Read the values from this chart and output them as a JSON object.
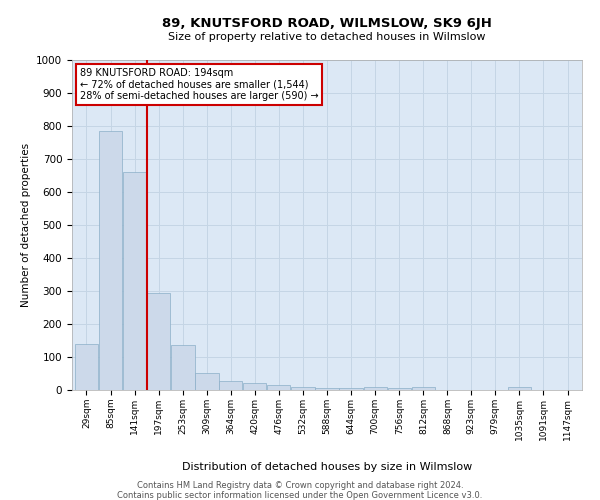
{
  "title": "89, KNUTSFORD ROAD, WILMSLOW, SK9 6JH",
  "subtitle": "Size of property relative to detached houses in Wilmslow",
  "xlabel": "Distribution of detached houses by size in Wilmslow",
  "ylabel": "Number of detached properties",
  "bar_color": "#ccd9ea",
  "bar_edge_color": "#8aaec8",
  "grid_color": "#c5d5e5",
  "background_color": "#dce8f5",
  "vline_color": "#cc0000",
  "categories": [
    29,
    85,
    141,
    197,
    253,
    309,
    364,
    420,
    476,
    532,
    588,
    644,
    700,
    756,
    812,
    868,
    923,
    979,
    1035,
    1091,
    1147
  ],
  "values": [
    140,
    785,
    660,
    295,
    135,
    52,
    28,
    20,
    15,
    10,
    7,
    5,
    10,
    5,
    10,
    0,
    0,
    0,
    10,
    0,
    0
  ],
  "ylim": [
    0,
    1000
  ],
  "yticks": [
    0,
    100,
    200,
    300,
    400,
    500,
    600,
    700,
    800,
    900,
    1000
  ],
  "annotation_box_text": "89 KNUTSFORD ROAD: 194sqm\n← 72% of detached houses are smaller (1,544)\n28% of semi-detached houses are larger (590) →",
  "annotation_box_color": "#cc0000",
  "vline_position": 169,
  "footer_line1": "Contains HM Land Registry data © Crown copyright and database right 2024.",
  "footer_line2": "Contains public sector information licensed under the Open Government Licence v3.0."
}
